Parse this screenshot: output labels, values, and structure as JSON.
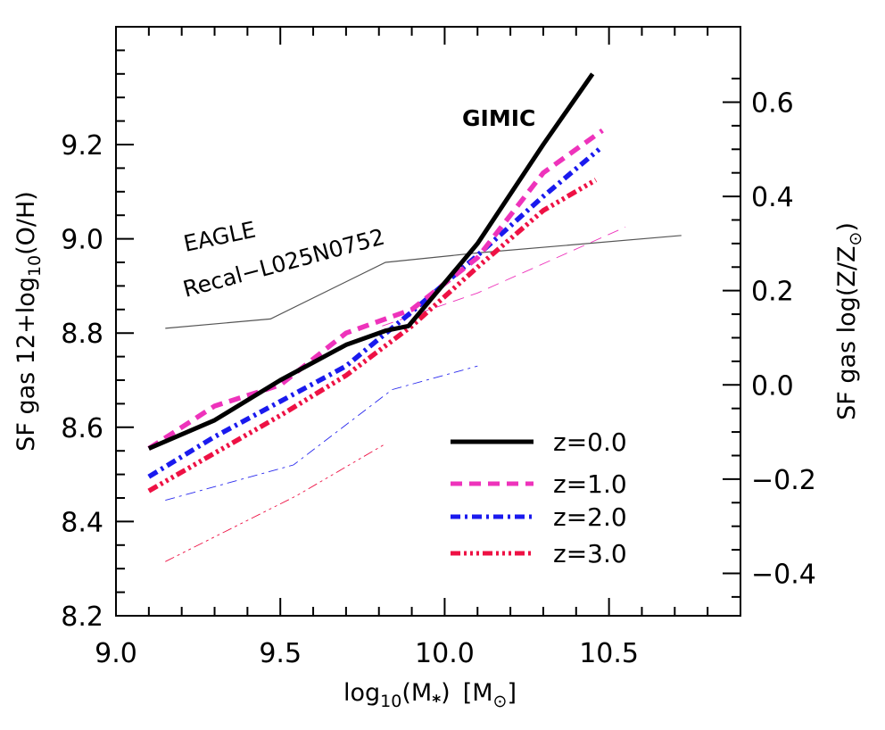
{
  "chart_data": {
    "type": "line",
    "xlabel": {
      "prefix": "log",
      "sub": "10",
      "mid": "(M",
      "star": "*",
      "close": ")",
      "unit_open": "[M",
      "sun": "⊙",
      "unit_close": "]"
    },
    "ylabel_left": {
      "prefix": "SF  gas  12+log",
      "sub": "10",
      "suffix": "(O/H)"
    },
    "ylabel_right": {
      "prefix": "SF  gas  log(Z/Z",
      "sun": "⊙",
      "suffix": ")"
    },
    "xlim": [
      9.0,
      10.9
    ],
    "ylim": [
      8.2,
      9.45
    ],
    "xticks": [
      9.0,
      9.5,
      10.0,
      10.5
    ],
    "xtick_labels": [
      "9.0",
      "9.5",
      "10.0",
      "10.5"
    ],
    "yticks": [
      8.2,
      8.4,
      8.6,
      8.8,
      9.0,
      9.2
    ],
    "ytick_labels": [
      "8.2",
      "8.4",
      "8.6",
      "8.8",
      "9.0",
      "9.2"
    ],
    "right_offset": 8.69,
    "yticks_right": [
      -0.4,
      -0.2,
      0.0,
      0.2,
      0.4,
      0.6
    ],
    "ytick_right_labels": [
      "−0.4",
      "−0.2",
      "0.0",
      "0.2",
      "0.4",
      "0.6"
    ],
    "annotations": {
      "gimic": "GIMIC",
      "eagle_line1": "EAGLE",
      "eagle_line2": "Recal−L025N0752"
    },
    "series": [
      {
        "name": "z=0.0",
        "color": "#000000",
        "style": "solid",
        "x": [
          9.1,
          9.3,
          9.5,
          9.7,
          9.82,
          9.89,
          10.1,
          10.3,
          10.45
        ],
        "y": [
          8.555,
          8.615,
          8.7,
          8.775,
          8.805,
          8.815,
          8.99,
          9.2,
          9.35
        ]
      },
      {
        "name": "z=1.0",
        "color": "#ee33bb",
        "style": "dashed",
        "x": [
          9.1,
          9.3,
          9.5,
          9.7,
          9.9,
          10.1,
          10.3,
          10.48
        ],
        "y": [
          8.555,
          8.645,
          8.69,
          8.8,
          8.85,
          8.96,
          9.14,
          9.23
        ]
      },
      {
        "name": "z=2.0",
        "color": "#1a1aee",
        "style": "dashdot",
        "x": [
          9.1,
          9.3,
          9.5,
          9.7,
          9.9,
          10.1,
          10.3,
          10.47
        ],
        "y": [
          8.495,
          8.58,
          8.655,
          8.73,
          8.845,
          8.965,
          9.09,
          9.19
        ]
      },
      {
        "name": "z=3.0",
        "color": "#ee1144",
        "style": "dashdotdot",
        "x": [
          9.1,
          9.3,
          9.5,
          9.7,
          9.9,
          10.1,
          10.3,
          10.46
        ],
        "y": [
          8.465,
          8.545,
          8.625,
          8.71,
          8.815,
          8.94,
          9.06,
          9.125
        ]
      }
    ],
    "eagle_series": [
      {
        "name": "z=0.0",
        "color": "#555555",
        "x": [
          9.15,
          9.47,
          9.82,
          10.1,
          10.72
        ],
        "y": [
          8.81,
          8.83,
          8.95,
          8.97,
          9.007
        ]
      },
      {
        "name": "z=1.0",
        "color": "#ee33bb",
        "x": [
          9.81,
          10.1,
          10.55
        ],
        "y": [
          8.815,
          8.885,
          9.025
        ]
      },
      {
        "name": "z=2.0",
        "color": "#2a2aee",
        "x": [
          9.15,
          9.54,
          9.84,
          10.1
        ],
        "y": [
          8.445,
          8.52,
          8.68,
          8.73
        ]
      },
      {
        "name": "z=3.0",
        "color": "#ee1144",
        "x": [
          9.15,
          9.55,
          9.82
        ],
        "y": [
          8.315,
          8.455,
          8.565
        ]
      }
    ]
  }
}
